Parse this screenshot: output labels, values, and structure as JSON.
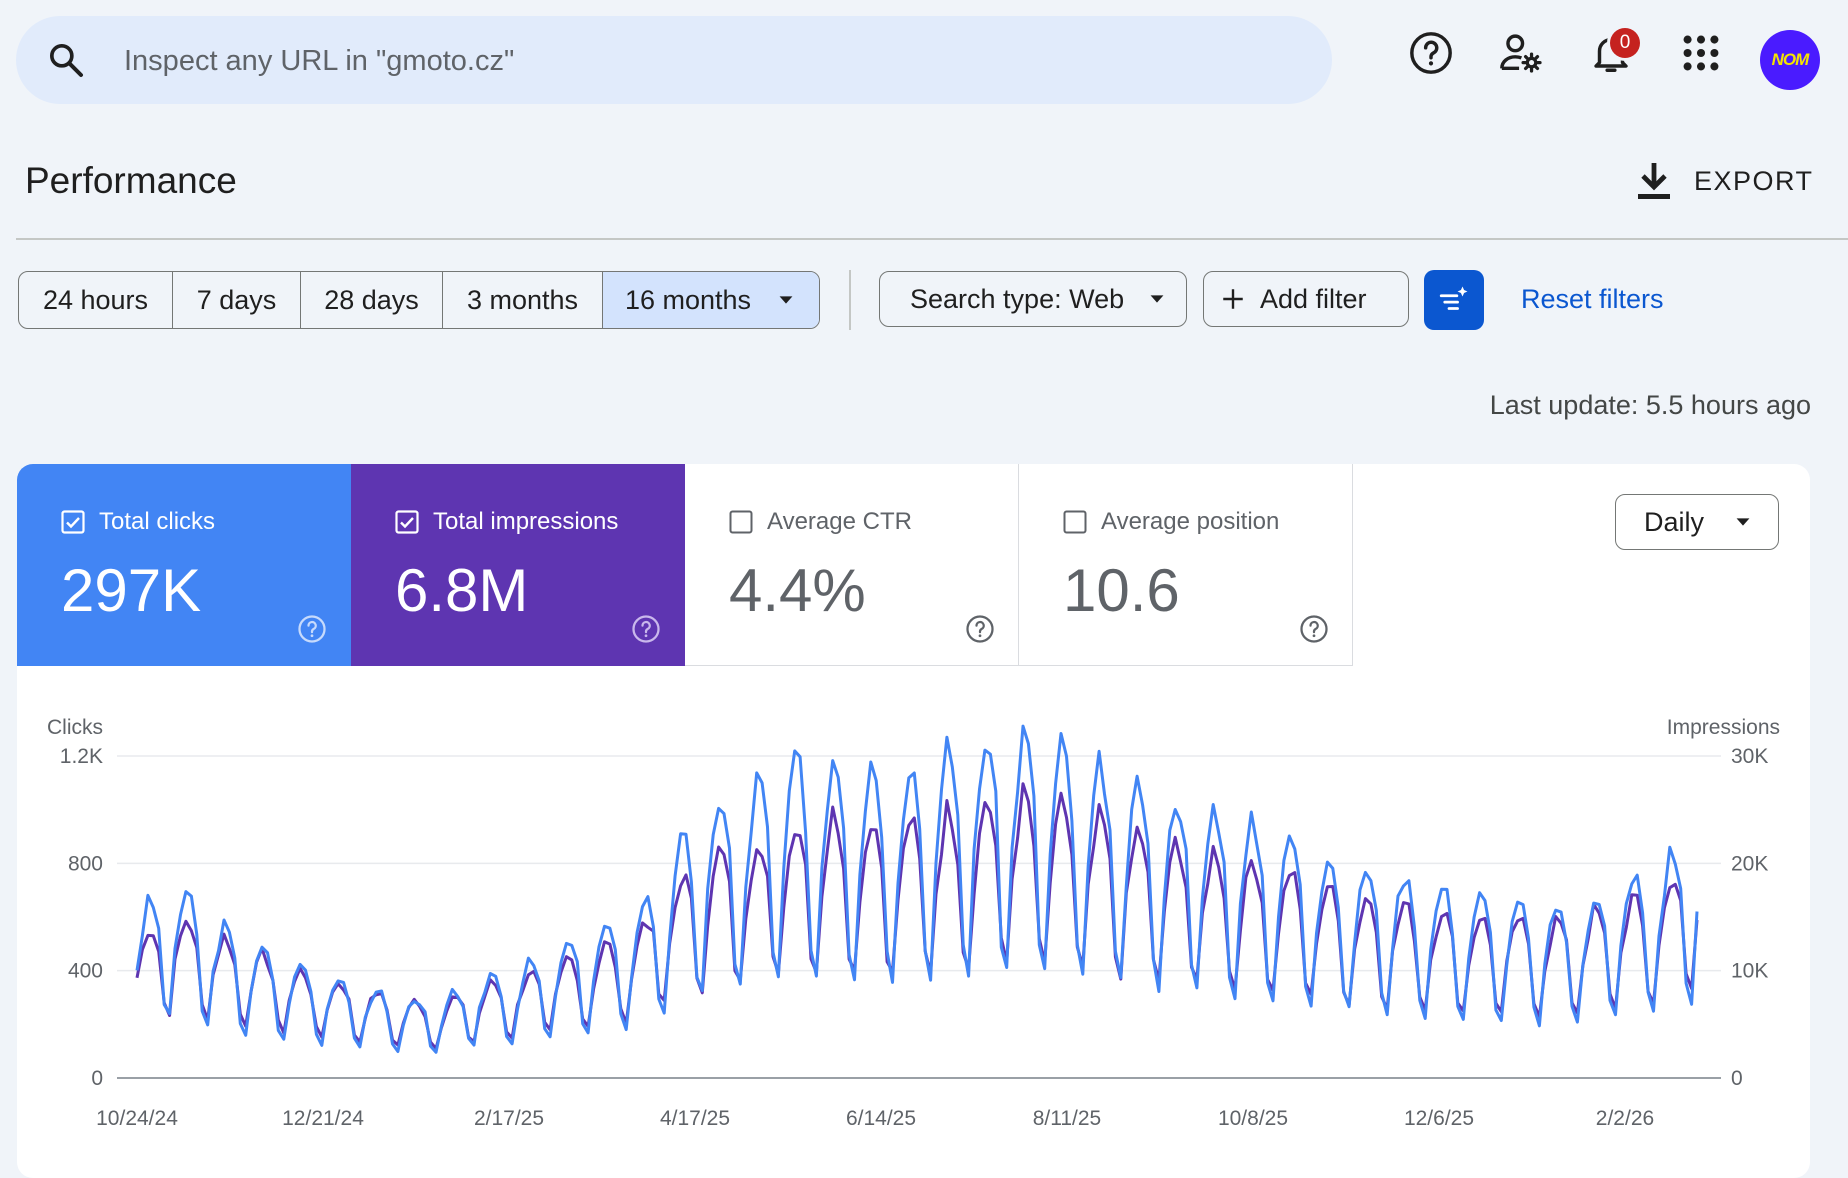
{
  "search": {
    "placeholder": "Inspect any URL in \"gmoto.cz\""
  },
  "topbar": {
    "icons": [
      "help-icon",
      "user-settings-icon",
      "bell-icon",
      "apps-icon"
    ],
    "notification_count": "0",
    "avatar_text": "NOM"
  },
  "header": {
    "title": "Performance",
    "export_label": "EXPORT"
  },
  "filters": {
    "ranges": [
      "24 hours",
      "7 days",
      "28 days",
      "3 months",
      "16 months"
    ],
    "selected_range": "16 months",
    "search_type": "Search type: Web",
    "add_filter": "Add filter",
    "reset": "Reset filters"
  },
  "last_update": "Last update: 5.5 hours ago",
  "metrics": {
    "clicks": {
      "label": "Total clicks",
      "value": "297K",
      "checked": true,
      "color": "#4285f4"
    },
    "impressions": {
      "label": "Total impressions",
      "value": "6.8M",
      "checked": true,
      "color": "#5e35b1"
    },
    "ctr": {
      "label": "Average CTR",
      "value": "4.4%",
      "checked": false
    },
    "position": {
      "label": "Average position",
      "value": "10.6",
      "checked": false
    }
  },
  "granularity": "Daily",
  "chart_data": {
    "type": "line",
    "xlabel": "",
    "ylabel_left": "Clicks",
    "ylabel_right": "Impressions",
    "yticks_left": [
      "1.2K",
      "800",
      "400",
      "0"
    ],
    "yticks_right": [
      "30K",
      "20K",
      "10K",
      "0"
    ],
    "ylim_left": [
      0,
      1200
    ],
    "ylim_right": [
      0,
      30000
    ],
    "xticks": [
      "10/24/24",
      "12/21/24",
      "2/17/25",
      "4/17/25",
      "6/14/25",
      "8/11/25",
      "10/8/25",
      "12/6/25",
      "2/2/26"
    ],
    "grid": true,
    "series": [
      {
        "name": "Clicks",
        "axis": "left",
        "color": "#4285f4",
        "weekly_values": [
          470,
          560,
          450,
          380,
          330,
          300,
          260,
          230,
          220,
          290,
          310,
          360,
          420,
          450,
          620,
          780,
          820,
          900,
          920,
          910,
          880,
          920,
          950,
          980,
          960,
          900,
          850,
          800,
          780,
          730,
          700,
          650,
          600,
          580,
          550,
          520,
          500,
          480,
          500,
          560,
          610,
          700
        ]
      },
      {
        "name": "Impressions",
        "axis": "right",
        "color": "#5e35b1",
        "weekly_values": [
          10500,
          12000,
          10800,
          9500,
          8200,
          7300,
          6500,
          5800,
          5500,
          6800,
          7500,
          8500,
          9600,
          10500,
          14000,
          16500,
          17200,
          18500,
          19500,
          19200,
          18700,
          19500,
          20200,
          21000,
          20500,
          19500,
          18500,
          17500,
          17000,
          16200,
          15500,
          14500,
          13500,
          13000,
          12500,
          12000,
          11800,
          11500,
          12000,
          13000,
          13800,
          16500
        ]
      }
    ]
  }
}
